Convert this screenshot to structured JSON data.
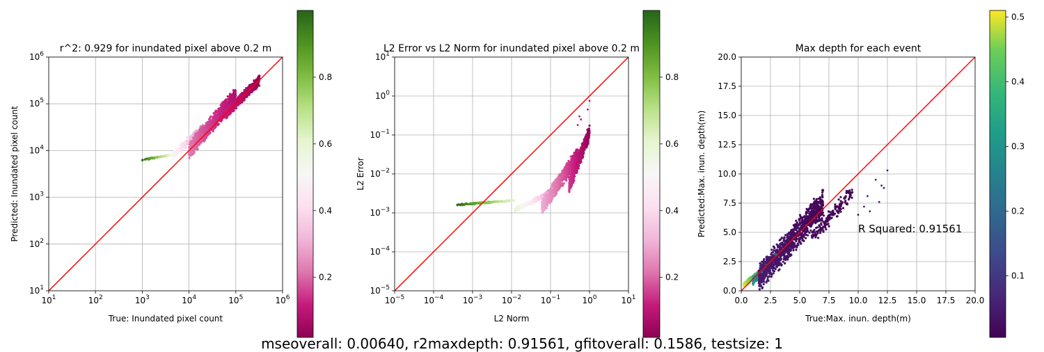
{
  "chart_data": [
    {
      "type": "scatter",
      "title": "r^2: 0.929 for inundated pixel above 0.2 m",
      "xlabel": "True: Inundated pixel count",
      "ylabel": "Predicted: Inundated pixel count",
      "x_scale": "log",
      "y_scale": "log",
      "xlim": [
        10,
        1000000
      ],
      "ylim": [
        10,
        1000000
      ],
      "grid": true,
      "x_ticks": [
        {
          "v": 10,
          "b": "10",
          "e": "1"
        },
        {
          "v": 100,
          "b": "10",
          "e": "2"
        },
        {
          "v": 1000,
          "b": "10",
          "e": "3"
        },
        {
          "v": 10000,
          "b": "10",
          "e": "4"
        },
        {
          "v": 100000,
          "b": "10",
          "e": "5"
        },
        {
          "v": 1000000,
          "b": "10",
          "e": "6"
        }
      ],
      "y_ticks": [
        {
          "v": 10,
          "b": "10",
          "e": "1"
        },
        {
          "v": 100,
          "b": "10",
          "e": "2"
        },
        {
          "v": 1000,
          "b": "10",
          "e": "3"
        },
        {
          "v": 10000,
          "b": "10",
          "e": "4"
        },
        {
          "v": 100000,
          "b": "10",
          "e": "5"
        },
        {
          "v": 1000000,
          "b": "10",
          "e": "6"
        }
      ],
      "reference_line": {
        "x": [
          10,
          1000000
        ],
        "y": [
          10,
          1000000
        ],
        "color": "#ff0000"
      },
      "point_clusters": [
        {
          "x": [
            1000,
            4500
          ],
          "y": [
            6300,
            8200
          ],
          "c": [
            0.98,
            0.55
          ],
          "n": 90
        },
        {
          "x": [
            4500,
            20000
          ],
          "y": [
            8000,
            30000
          ],
          "c": [
            0.5,
            0.22
          ],
          "n": 220
        },
        {
          "x": [
            10000,
            100000
          ],
          "y": [
            10000,
            150000
          ],
          "c": [
            0.22,
            0.08
          ],
          "n": 900
        },
        {
          "x": [
            60000,
            320000
          ],
          "y": [
            60000,
            320000
          ],
          "c": [
            0.12,
            0.03
          ],
          "n": 600
        }
      ],
      "colorbar": {
        "colormap": "PiYG",
        "range": [
          0.02,
          1.0
        ],
        "ticks": [
          "0.2",
          "0.4",
          "0.6",
          "0.8"
        ]
      }
    },
    {
      "type": "scatter",
      "title": "L2 Error vs L2 Norm for inundated pixel above 0.2 m",
      "xlabel": "L2 Norm",
      "ylabel": "L2 Error",
      "x_scale": "log",
      "y_scale": "log",
      "xlim": [
        1e-05,
        10
      ],
      "ylim": [
        1e-05,
        10
      ],
      "grid": true,
      "x_ticks": [
        {
          "v": 1e-05,
          "b": "10",
          "e": "−5"
        },
        {
          "v": 0.0001,
          "b": "10",
          "e": "−4"
        },
        {
          "v": 0.001,
          "b": "10",
          "e": "−3"
        },
        {
          "v": 0.01,
          "b": "10",
          "e": "−2"
        },
        {
          "v": 0.1,
          "b": "10",
          "e": "−1"
        },
        {
          "v": 1,
          "b": "10",
          "e": "0"
        },
        {
          "v": 10,
          "b": "10",
          "e": "1"
        }
      ],
      "y_ticks": [
        {
          "v": 1e-05,
          "b": "10",
          "e": "−5"
        },
        {
          "v": 0.0001,
          "b": "10",
          "e": "−4"
        },
        {
          "v": 0.001,
          "b": "10",
          "e": "−3"
        },
        {
          "v": 0.01,
          "b": "10",
          "e": "−2"
        },
        {
          "v": 0.1,
          "b": "10",
          "e": "−1"
        },
        {
          "v": 1,
          "b": "10",
          "e": "0"
        },
        {
          "v": 10,
          "b": "10",
          "e": "1"
        }
      ],
      "reference_line": {
        "x": [
          1e-05,
          10
        ],
        "y": [
          1e-05,
          10
        ],
        "color": "#ff0000"
      },
      "point_clusters": [
        {
          "x": [
            0.0004,
            0.012
          ],
          "y": [
            0.0016,
            0.0021
          ],
          "c": [
            0.98,
            0.6
          ],
          "n": 160
        },
        {
          "x": [
            0.012,
            0.08
          ],
          "y": [
            0.0012,
            0.003
          ],
          "c": [
            0.6,
            0.3
          ],
          "n": 200
        },
        {
          "x": [
            0.06,
            0.5
          ],
          "y": [
            0.0014,
            0.03
          ],
          "c": [
            0.3,
            0.1
          ],
          "n": 700
        },
        {
          "x": [
            0.3,
            1.0
          ],
          "y": [
            0.005,
            0.12
          ],
          "c": [
            0.15,
            0.03
          ],
          "n": 500
        }
      ],
      "outliers": [
        {
          "x": 0.5,
          "y": 0.18
        },
        {
          "x": 0.6,
          "y": 0.25
        },
        {
          "x": 0.9,
          "y": 0.45
        },
        {
          "x": 1.0,
          "y": 0.75
        },
        {
          "x": 0.55,
          "y": 0.3
        }
      ],
      "colorbar": {
        "colormap": "PiYG",
        "range": [
          0.02,
          1.0
        ],
        "ticks": [
          "0.2",
          "0.4",
          "0.6",
          "0.8"
        ]
      }
    },
    {
      "type": "scatter",
      "title": "Max depth for each event",
      "xlabel": "True:Max. inun. depth(m)",
      "ylabel": "Predicted:Max. inun. depth(m)",
      "x_scale": "linear",
      "y_scale": "linear",
      "xlim": [
        0,
        20
      ],
      "ylim": [
        0,
        20
      ],
      "grid": true,
      "x_ticks": [
        "0.0",
        "2.5",
        "5.0",
        "7.5",
        "10.0",
        "12.5",
        "15.0",
        "17.5",
        "20.0"
      ],
      "y_ticks": [
        "0.0",
        "2.5",
        "5.0",
        "7.5",
        "10.0",
        "12.5",
        "15.0",
        "17.5",
        "20.0"
      ],
      "reference_line": {
        "x": [
          0,
          20
        ],
        "y": [
          0,
          20
        ],
        "color": "#ff0000"
      },
      "annotation": "R Squared: 0.91561",
      "point_clusters": [
        {
          "x": [
            0.2,
            1.6
          ],
          "y": [
            0.5,
            1.6
          ],
          "c": [
            0.5,
            0.35
          ],
          "n": 160
        },
        {
          "x": [
            1.0,
            3.0
          ],
          "y": [
            0.8,
            3.0
          ],
          "c": [
            0.3,
            0.18
          ],
          "n": 260
        },
        {
          "x": [
            1.5,
            7.0
          ],
          "y": [
            1.0,
            7.5
          ],
          "c": [
            0.05,
            0.01
          ],
          "n": 1100
        },
        {
          "x": [
            6.0,
            9.5
          ],
          "y": [
            4.5,
            8.5
          ],
          "c": [
            0.02,
            0.01
          ],
          "n": 160
        }
      ],
      "outliers": [
        {
          "x": 10.0,
          "y": 6.5
        },
        {
          "x": 10.5,
          "y": 7.2
        },
        {
          "x": 11.0,
          "y": 6.8
        },
        {
          "x": 11.5,
          "y": 9.5
        },
        {
          "x": 12.0,
          "y": 9.0
        },
        {
          "x": 12.5,
          "y": 10.3
        },
        {
          "x": 12.2,
          "y": 8.8
        },
        {
          "x": 11.8,
          "y": 7.6
        },
        {
          "x": 10.8,
          "y": 8.1
        }
      ],
      "colorbar": {
        "colormap": "viridis",
        "range": [
          0.005,
          0.51
        ],
        "ticks": [
          "0.1",
          "0.2",
          "0.3",
          "0.4",
          "0.5"
        ]
      }
    }
  ],
  "suptitle": "mseoverall: 0.00640, r2maxdepth: 0.91561, gfitoverall: 0.1586, testsize: 1"
}
